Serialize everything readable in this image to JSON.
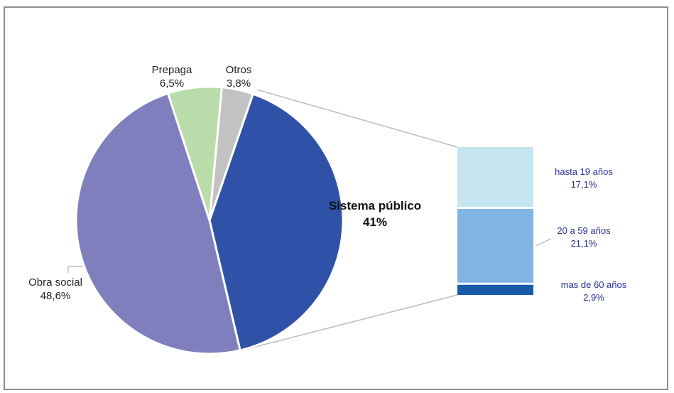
{
  "chart_data": {
    "type": "bar-of-pie",
    "pie": [
      {
        "label": "Sistema público",
        "value_text": "41%",
        "value": 41.0,
        "color": "#2f52a8"
      },
      {
        "label": "Obra social",
        "value_text": "48,6%",
        "value": 48.6,
        "color": "#7f7fbd"
      },
      {
        "label": "Prepaga",
        "value_text": "6,5%",
        "value": 6.5,
        "color": "#b9dcaa"
      },
      {
        "label": "Otros",
        "value_text": "3,8%",
        "value": 3.8,
        "color": "#c2c2c2"
      }
    ],
    "breakdown_of": "Sistema público",
    "bar": [
      {
        "label": "hasta 19 años",
        "value_text": "17,1%",
        "value": 17.1,
        "color": "#c4e5ef"
      },
      {
        "label": "20 a 59 años",
        "value_text": "21,1%",
        "value": 21.1,
        "color": "#80b4e2"
      },
      {
        "label": "mas de 60 años",
        "value_text": "2,9%",
        "value": 2.9,
        "color": "#1a5aa9"
      }
    ]
  }
}
